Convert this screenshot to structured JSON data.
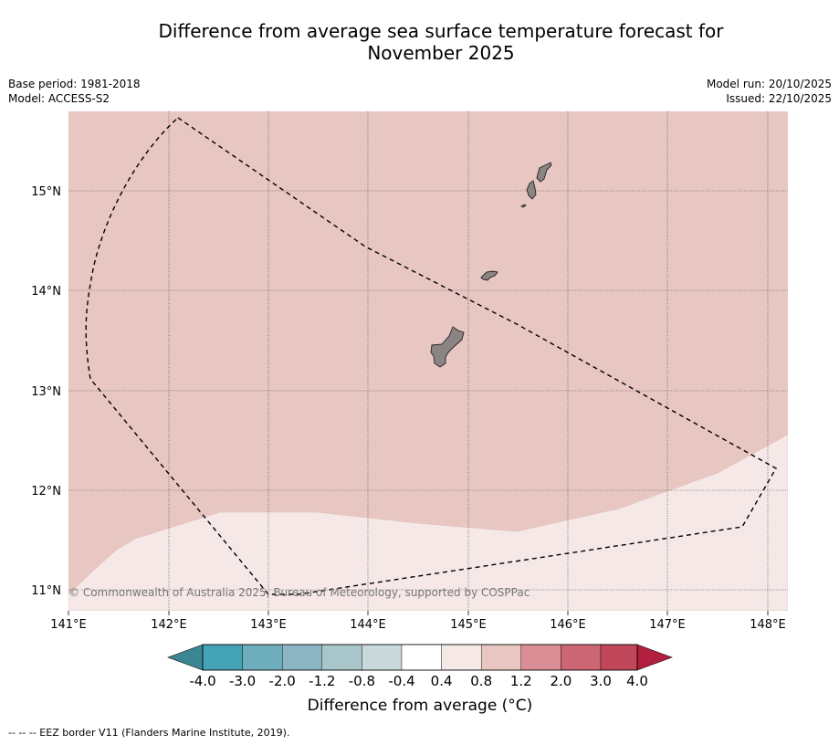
{
  "title_line1": "Difference from average sea surface temperature forecast for",
  "title_line2": "November 2025",
  "base_period": "Base period: 1981-2018",
  "model": "Model: ACCESS-S2",
  "model_run": "Model run: 20/10/2025",
  "issued": "Issued: 22/10/2025",
  "copyright": "© Commonwealth of Australia 2025, Bureau of Meteorology, supported by COSPPac",
  "footnote": "--  --  -- EEZ border V11 (Flanders Marine Institute, 2019).",
  "map": {
    "lon_range": [
      141.0,
      148.2
    ],
    "lat_range": [
      10.8,
      15.8
    ],
    "x_ticks": [
      "141°E",
      "142°E",
      "143°E",
      "144°E",
      "145°E",
      "146°E",
      "147°E",
      "148°E"
    ],
    "y_ticks": [
      "11°N",
      "12°N",
      "13°N",
      "14°N",
      "15°N"
    ],
    "anomaly_regions": [
      {
        "category": "0.8 to 1.2",
        "color": "#e8c7c3"
      },
      {
        "category": "0.4 to 0.8",
        "color": "#f5e8e6"
      }
    ],
    "land_color": "#8a8583"
  },
  "colorbar": {
    "label": "Difference from average (°C)",
    "ticks": [
      "-4.0",
      "-3.0",
      "-2.0",
      "-1.2",
      "-0.8",
      "-0.4",
      "0.4",
      "0.8",
      "1.2",
      "2.0",
      "3.0",
      "4.0"
    ],
    "colors": [
      "#44a3b4",
      "#6eaebc",
      "#8bb6c2",
      "#a8c6ca",
      "#cad9dc",
      "#ffffff",
      "#f5e8e6",
      "#e8c7c3",
      "#da8e96",
      "#cc6675",
      "#c0485a"
    ],
    "under_color": "#3c8592",
    "over_color": "#b31f3e"
  }
}
